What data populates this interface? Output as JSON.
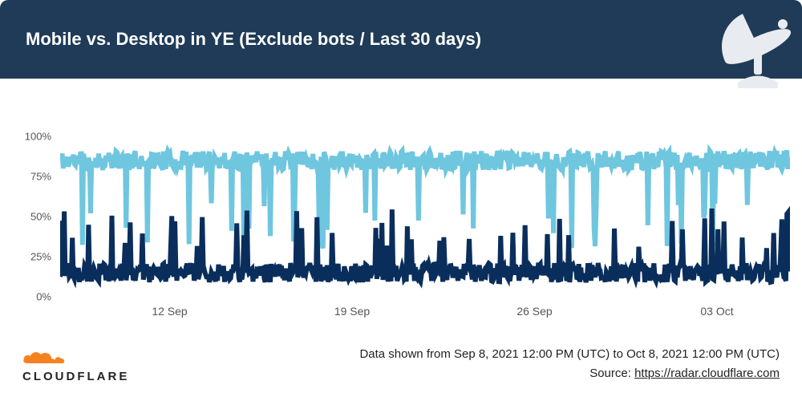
{
  "header": {
    "title": "Mobile vs. Desktop in YE (Exclude bots / Last 30 days)",
    "bg_color": "#1f3b57",
    "text_color": "#ffffff",
    "radar_icon_color": "#e8ecf0"
  },
  "chart": {
    "type": "line",
    "background_color": "#ffffff",
    "axis_text_color": "#555555",
    "axis_fontsize": 13,
    "y": {
      "min": 0,
      "max": 100,
      "ticks": [
        0,
        25,
        50,
        75,
        100
      ],
      "tick_labels": [
        "0%",
        "25%",
        "50%",
        "75%",
        "100%"
      ]
    },
    "x": {
      "tick_positions_pct": [
        15,
        40,
        65,
        90
      ],
      "tick_labels": [
        "12 Sep",
        "19 Sep",
        "26 Sep",
        "03 Oct"
      ]
    },
    "series": [
      {
        "name": "Mobile",
        "color": "#6fc6df",
        "stroke_width": 1.2,
        "n_points": 720,
        "base": 85,
        "noise_amp": 6,
        "spike_prob": 0.05,
        "spike_low": 30,
        "spike_high": 60,
        "seed": 11
      },
      {
        "name": "Desktop",
        "color": "#0a2e5c",
        "stroke_width": 1.2,
        "n_points": 720,
        "base": 15,
        "noise_amp": 6,
        "spike_prob": 0.07,
        "spike_low": 30,
        "spike_high": 55,
        "seed": 12
      }
    ]
  },
  "footer": {
    "logo_text": "CLOUDFLARE",
    "logo_color": "#f6821f",
    "logo_text_color": "#232323",
    "line1": "Data shown from Sep 8, 2021 12:00 PM (UTC) to Oct 8, 2021 12:00 PM (UTC)",
    "source_prefix": "Source: ",
    "source_text": "https://radar.cloudflare.com",
    "text_color": "#222222"
  }
}
